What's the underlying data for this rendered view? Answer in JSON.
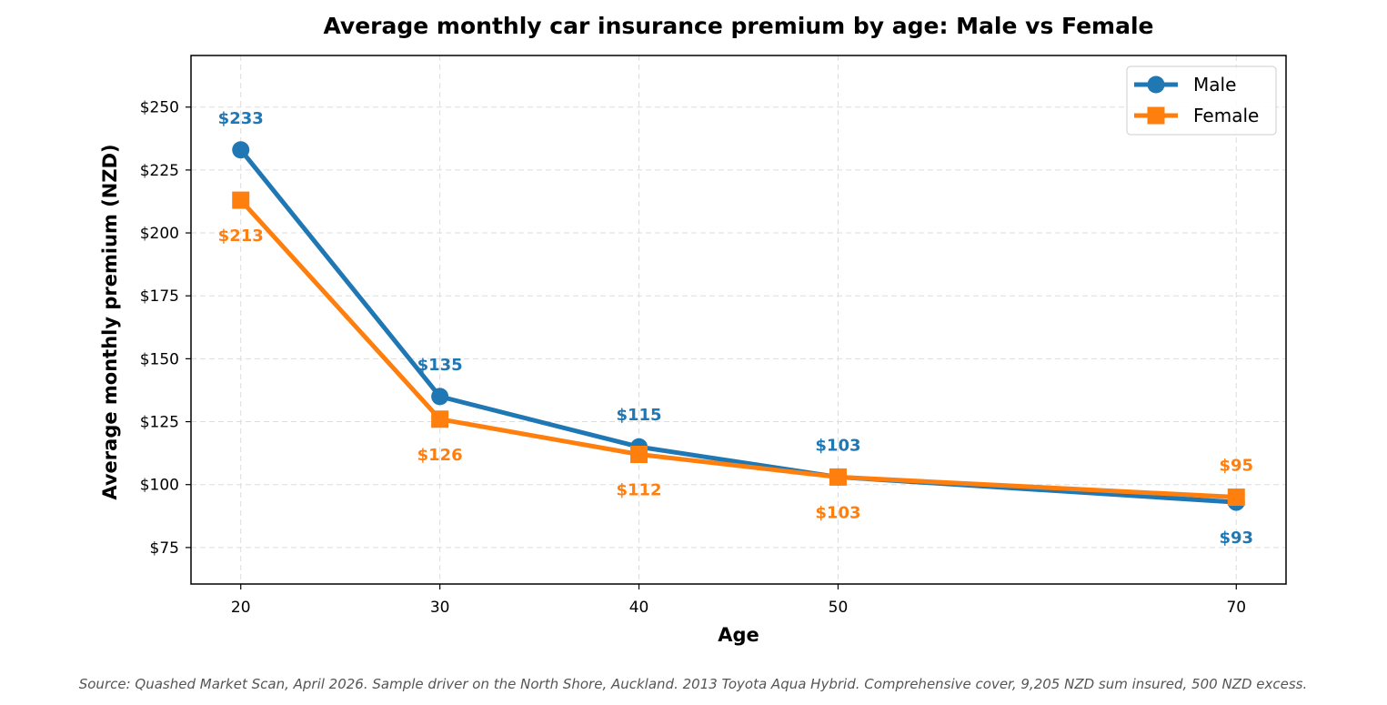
{
  "chart_data": {
    "type": "line",
    "title": "Average monthly car insurance premium by age: Male vs Female",
    "xlabel": "Age",
    "ylabel": "Average monthly premium (NZD)",
    "x": [
      20,
      30,
      40,
      50,
      70
    ],
    "x_ticks": [
      "20",
      "30",
      "40",
      "50",
      "70"
    ],
    "y_ticks": [
      "$75",
      "$100",
      "$125",
      "$150",
      "$175",
      "$200",
      "$225",
      "$250"
    ],
    "y_tick_values": [
      75,
      100,
      125,
      150,
      175,
      200,
      225,
      250
    ],
    "xlim": [
      17.5,
      72.5
    ],
    "ylim": [
      60.5,
      270.5
    ],
    "grid": true,
    "legend_position": "top-right",
    "series": [
      {
        "name": "Male",
        "color": "#1f77b4",
        "marker": "circle",
        "values": [
          233,
          135,
          115,
          103,
          93
        ],
        "labels": [
          "$233",
          "$135",
          "$115",
          "$103",
          "$93"
        ]
      },
      {
        "name": "Female",
        "color": "#ff7f0e",
        "marker": "square",
        "values": [
          213,
          126,
          112,
          103,
          95
        ],
        "labels": [
          "$213",
          "$126",
          "$112",
          "$103",
          "$95"
        ]
      }
    ]
  },
  "footer": {
    "source": "Source: Quashed Market Scan, April 2026. Sample driver on the North Shore, Auckland. 2013 Toyota Aqua Hybrid. Comprehensive cover, 9,205 NZD sum insured, 500 NZD excess."
  }
}
